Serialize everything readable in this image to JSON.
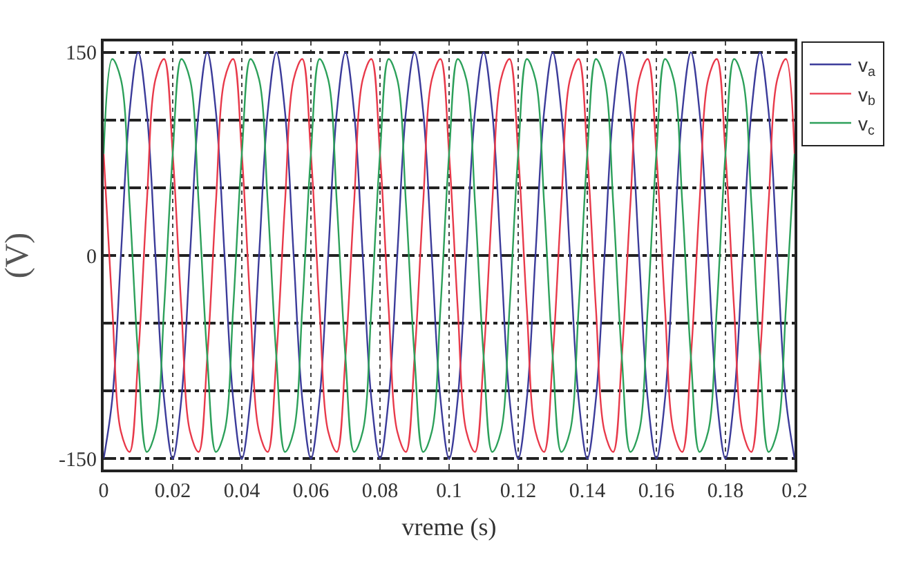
{
  "chart_data": {
    "type": "line",
    "xlabel": "vreme (s)",
    "ylabel": "(V)",
    "x": [
      0,
      0.0025,
      0.005,
      0.0075,
      0.01,
      0.0125,
      0.015,
      0.0175,
      0.02,
      0.0225,
      0.025,
      0.0275,
      0.03,
      0.0325,
      0.035,
      0.0375,
      0.04,
      0.0425,
      0.045,
      0.0475,
      0.05,
      0.0525,
      0.055,
      0.0575,
      0.06,
      0.0625,
      0.065,
      0.0675,
      0.07,
      0.0725,
      0.075,
      0.0775,
      0.08,
      0.0825,
      0.085,
      0.0875,
      0.09,
      0.0925,
      0.095,
      0.0975,
      0.1,
      0.1025,
      0.105,
      0.1075,
      0.11,
      0.1125,
      0.115,
      0.1175,
      0.12,
      0.1225,
      0.125,
      0.1275,
      0.13,
      0.1325,
      0.135,
      0.1375,
      0.14,
      0.1425,
      0.145,
      0.1475,
      0.15,
      0.1525,
      0.155,
      0.1575,
      0.16,
      0.1625,
      0.165,
      0.1675,
      0.17,
      0.1725,
      0.175,
      0.1775,
      0.18,
      0.1825,
      0.185,
      0.1875,
      0.19,
      0.1925,
      0.195,
      0.1975,
      0.2
    ],
    "series": [
      {
        "name": "v$_{a}$",
        "color": "#3b3b9a",
        "values": [
          -150,
          -106,
          0,
          106,
          150,
          106,
          0,
          -106,
          -150,
          -106,
          0,
          106,
          150,
          106,
          0,
          -106,
          -150,
          -106,
          0,
          106,
          150,
          106,
          0,
          -106,
          -150,
          -106,
          0,
          106,
          150,
          106,
          0,
          -106,
          -150,
          -106,
          0,
          106,
          150,
          106,
          0,
          -106,
          -150,
          -106,
          0,
          106,
          150,
          106,
          0,
          -106,
          -150,
          -106,
          0,
          106,
          150,
          106,
          0,
          -106,
          -150,
          -106,
          0,
          106,
          150,
          106,
          0,
          -106,
          -150,
          -106,
          0,
          106,
          150,
          106,
          0,
          -106,
          -150,
          -106,
          0,
          106,
          150,
          106,
          0,
          -106,
          -150
        ]
      },
      {
        "name": "v$_{b}$",
        "color": "#e8394a",
        "values": [
          75,
          -39,
          -130,
          -145,
          -75,
          39,
          130,
          145,
          75,
          -39,
          -130,
          -145,
          -75,
          39,
          130,
          145,
          75,
          -39,
          -130,
          -145,
          -75,
          39,
          130,
          145,
          75,
          -39,
          -130,
          -145,
          -75,
          39,
          130,
          145,
          75,
          -39,
          -130,
          -145,
          -75,
          39,
          130,
          145,
          75,
          -39,
          -130,
          -145,
          -75,
          39,
          130,
          145,
          75,
          -39,
          -130,
          -145,
          -75,
          39,
          130,
          145,
          75,
          -39,
          -130,
          -145,
          -75,
          39,
          130,
          145,
          75,
          -39,
          -130,
          -145,
          -75,
          39,
          130,
          145,
          75,
          -39,
          -130,
          -145,
          -75,
          39,
          130,
          145,
          75
        ]
      },
      {
        "name": "v$_{c}$",
        "color": "#2ca05a",
        "values": [
          75,
          145,
          130,
          39,
          -75,
          -145,
          -130,
          -39,
          75,
          145,
          130,
          39,
          -75,
          -145,
          -130,
          -39,
          75,
          145,
          130,
          39,
          -75,
          -145,
          -130,
          -39,
          75,
          145,
          130,
          39,
          -75,
          -145,
          -130,
          -39,
          75,
          145,
          130,
          39,
          -75,
          -145,
          -130,
          -39,
          75,
          145,
          130,
          39,
          -75,
          -145,
          -130,
          -39,
          75,
          145,
          130,
          39,
          -75,
          -145,
          -130,
          -39,
          75,
          145,
          130,
          39,
          -75,
          -145,
          -130,
          -39,
          75,
          145,
          130,
          39,
          -75,
          -145,
          -130,
          -39,
          75,
          145,
          130,
          39,
          -75,
          -145,
          -130,
          -39,
          75
        ]
      }
    ],
    "xlim": [
      0,
      0.2
    ],
    "ylim": [
      -158,
      158
    ],
    "xticks": [
      0,
      0.02,
      0.04,
      0.06,
      0.08,
      0.1,
      0.12,
      0.14,
      0.16,
      0.18,
      0.2
    ],
    "yticks": [
      -150,
      {
        "value": -100,
        "label": null
      },
      {
        "value": -50,
        "label": null
      },
      0,
      {
        "value": 50,
        "label": null
      },
      {
        "value": 100,
        "label": null
      },
      150
    ],
    "grid": true,
    "legend": "top right",
    "marker": "none",
    "line_style": "solid"
  }
}
